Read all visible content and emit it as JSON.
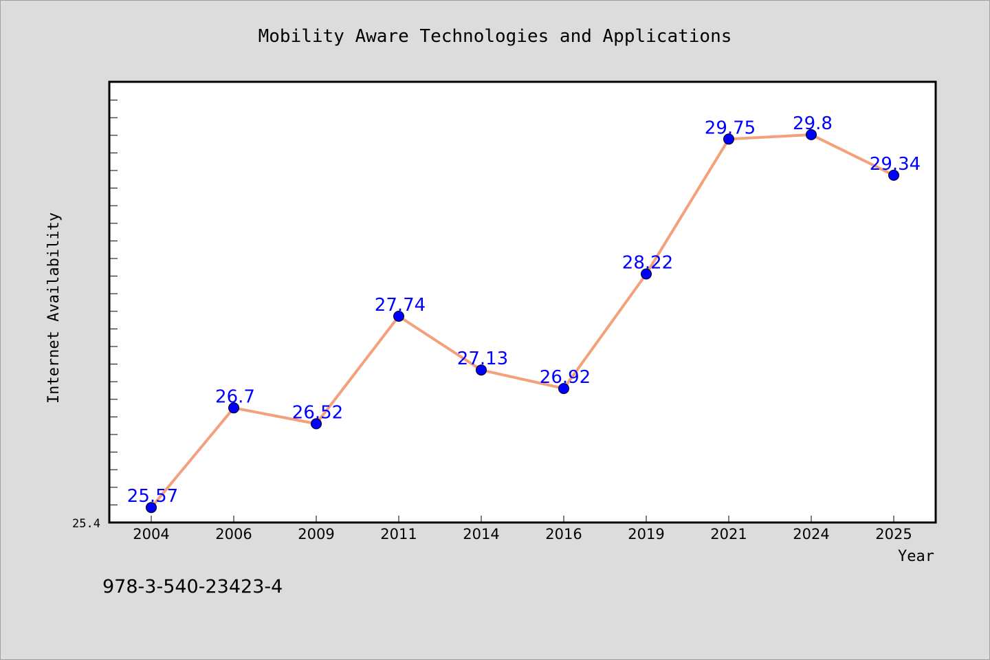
{
  "chart_data": {
    "type": "line",
    "title": "Mobility Aware Technologies and Applications",
    "xlabel": "Year",
    "ylabel": "Internet Availability",
    "categories": [
      "2004",
      "2006",
      "2009",
      "2011",
      "2014",
      "2016",
      "2019",
      "2021",
      "2024",
      "2025"
    ],
    "series": [
      {
        "values": [
          25.57,
          26.7,
          26.52,
          27.74,
          27.13,
          26.92,
          28.22,
          29.75,
          29.8,
          29.34
        ],
        "labels": [
          "25.57",
          "26.7",
          "26.52",
          "27.74",
          "27.13",
          "26.92",
          "28.22",
          "29.75",
          "29.8",
          "29.34"
        ]
      }
    ],
    "y_tick_labels": [
      "25.4"
    ],
    "ylim": [
      25.4,
      30.4
    ],
    "grid": false,
    "colors": {
      "background": "#dcdcdc",
      "plot_background": "#ffffff",
      "line": "#f4a07a",
      "marker": "#0000ff",
      "data_label": "#0000ff",
      "text": "#000000"
    }
  },
  "footer": {
    "isbn": "978-3-540-23423-4"
  }
}
